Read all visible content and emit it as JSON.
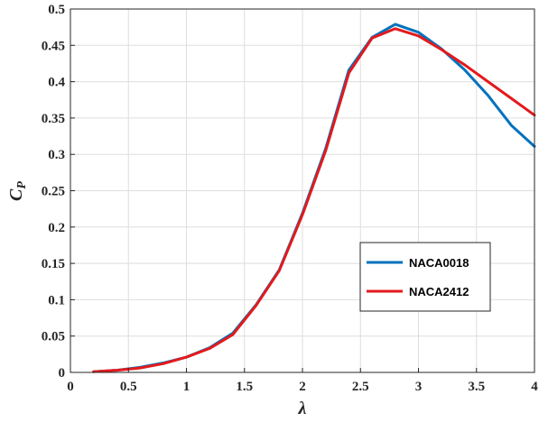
{
  "chart_data": {
    "type": "line",
    "title": "",
    "xlabel": "λ",
    "ylabel_main": "C",
    "ylabel_sub": "P",
    "xlim": [
      0,
      4
    ],
    "ylim": [
      0,
      0.5
    ],
    "xticks": [
      0,
      0.5,
      1,
      1.5,
      2,
      2.5,
      3,
      3.5,
      4
    ],
    "xtick_labels": [
      "0",
      "0.5",
      "1",
      "1.5",
      "2",
      "2.5",
      "3",
      "3.5",
      "4"
    ],
    "yticks": [
      0,
      0.05,
      0.1,
      0.15,
      0.2,
      0.25,
      0.3,
      0.35,
      0.4,
      0.45,
      0.5
    ],
    "ytick_labels": [
      "0",
      "0.05",
      "0.1",
      "0.15",
      "0.2",
      "0.25",
      "0.3",
      "0.35",
      "0.4",
      "0.45",
      "0.5"
    ],
    "grid": true,
    "legend_position": "lower-right",
    "series": [
      {
        "name": "NACA0018",
        "color": "#0072bd",
        "x": [
          0.2,
          0.4,
          0.6,
          0.8,
          1.0,
          1.2,
          1.4,
          1.6,
          1.8,
          2.0,
          2.2,
          2.4,
          2.6,
          2.8,
          3.0,
          3.2,
          3.4,
          3.6,
          3.8,
          4.0
        ],
        "y": [
          0.001,
          0.003,
          0.007,
          0.013,
          0.021,
          0.034,
          0.054,
          0.093,
          0.141,
          0.219,
          0.308,
          0.416,
          0.461,
          0.479,
          0.468,
          0.445,
          0.416,
          0.381,
          0.34,
          0.311
        ]
      },
      {
        "name": "NACA2412",
        "color": "#e31a1c",
        "x": [
          0.2,
          0.4,
          0.6,
          0.8,
          1.0,
          1.2,
          1.4,
          1.6,
          1.8,
          2.0,
          2.2,
          2.4,
          2.6,
          2.8,
          3.0,
          3.2,
          3.4,
          3.6,
          3.8,
          4.0
        ],
        "y": [
          0.001,
          0.003,
          0.006,
          0.012,
          0.021,
          0.033,
          0.052,
          0.092,
          0.14,
          0.217,
          0.305,
          0.412,
          0.46,
          0.473,
          0.463,
          0.444,
          0.423,
          0.4,
          0.377,
          0.354
        ]
      }
    ]
  }
}
